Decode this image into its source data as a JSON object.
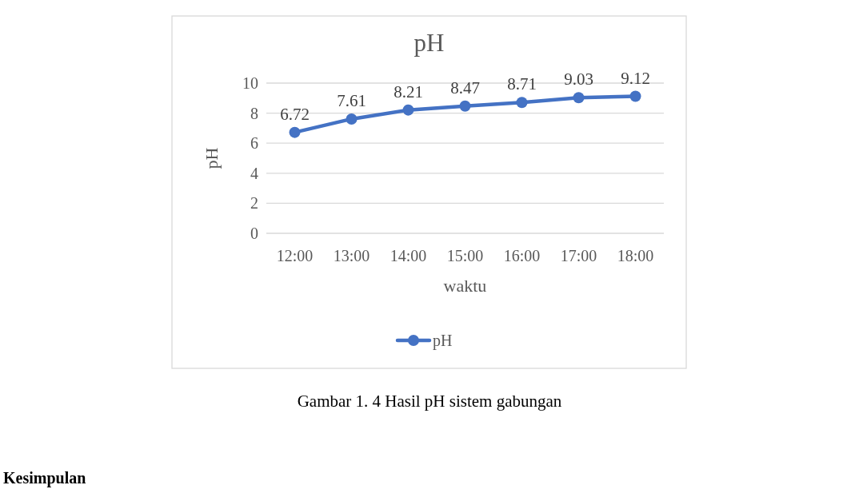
{
  "chart_data": {
    "type": "line",
    "title": "pH",
    "xlabel": "waktu",
    "ylabel": "pH",
    "categories": [
      "12:00",
      "13:00",
      "14:00",
      "15:00",
      "16:00",
      "17:00",
      "18:00"
    ],
    "series": [
      {
        "name": "pH",
        "color": "#4472c4",
        "values": [
          6.72,
          7.61,
          8.21,
          8.47,
          8.71,
          9.03,
          9.12
        ]
      }
    ],
    "ylim": [
      0,
      10
    ],
    "yticks": [
      0,
      2,
      4,
      6,
      8,
      10
    ],
    "grid": "y",
    "legend": "bottom",
    "marker": "circle",
    "line_style": "solid",
    "data_labels": true,
    "annotations": [
      "Gambar 1. 4 Hasil pH sistem gabungan",
      "Kesimpulan"
    ]
  }
}
